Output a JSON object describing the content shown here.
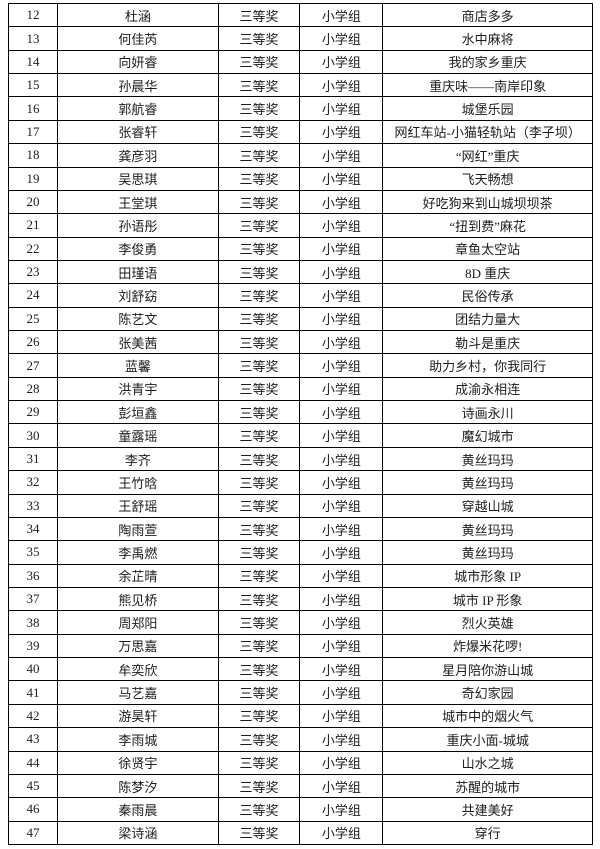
{
  "table": {
    "rows": [
      {
        "no": "12",
        "name": "杜涵",
        "award": "三等奖",
        "group": "小学组",
        "title": "商店多多"
      },
      {
        "no": "13",
        "name": "何佳芮",
        "award": "三等奖",
        "group": "小学组",
        "title": "水中麻将"
      },
      {
        "no": "14",
        "name": "向妍睿",
        "award": "三等奖",
        "group": "小学组",
        "title": "我的家乡重庆"
      },
      {
        "no": "15",
        "name": "孙晨华",
        "award": "三等奖",
        "group": "小学组",
        "title": "重庆味——南岸印象"
      },
      {
        "no": "16",
        "name": "郭航睿",
        "award": "三等奖",
        "group": "小学组",
        "title": "城堡乐园"
      },
      {
        "no": "17",
        "name": "张睿轩",
        "award": "三等奖",
        "group": "小学组",
        "title": "网红车站-小猫轻轨站（李子坝）"
      },
      {
        "no": "18",
        "name": "龚彦羽",
        "award": "三等奖",
        "group": "小学组",
        "title": "“网红”重庆"
      },
      {
        "no": "19",
        "name": "吴思琪",
        "award": "三等奖",
        "group": "小学组",
        "title": "飞天畅想"
      },
      {
        "no": "20",
        "name": "王堂琪",
        "award": "三等奖",
        "group": "小学组",
        "title": "好吃狗来到山城坝坝茶"
      },
      {
        "no": "21",
        "name": "孙语彤",
        "award": "三等奖",
        "group": "小学组",
        "title": "“扭到费”麻花"
      },
      {
        "no": "22",
        "name": "李俊勇",
        "award": "三等奖",
        "group": "小学组",
        "title": "章鱼太空站"
      },
      {
        "no": "23",
        "name": "田瑾语",
        "award": "三等奖",
        "group": "小学组",
        "title": "8D 重庆"
      },
      {
        "no": "24",
        "name": "刘舒窈",
        "award": "三等奖",
        "group": "小学组",
        "title": "民俗传承"
      },
      {
        "no": "25",
        "name": "陈艺文",
        "award": "三等奖",
        "group": "小学组",
        "title": "团结力量大"
      },
      {
        "no": "26",
        "name": "张美茜",
        "award": "三等奖",
        "group": "小学组",
        "title": "勒斗是重庆"
      },
      {
        "no": "27",
        "name": "蓝馨",
        "award": "三等奖",
        "group": "小学组",
        "title": "助力乡村，你我同行"
      },
      {
        "no": "28",
        "name": "洪青宇",
        "award": "三等奖",
        "group": "小学组",
        "title": "成渝永相连"
      },
      {
        "no": "29",
        "name": "彭垣鑫",
        "award": "三等奖",
        "group": "小学组",
        "title": "诗画永川"
      },
      {
        "no": "30",
        "name": "童露瑶",
        "award": "三等奖",
        "group": "小学组",
        "title": "魔幻城市"
      },
      {
        "no": "31",
        "name": "李齐",
        "award": "三等奖",
        "group": "小学组",
        "title": "黄丝玛玛"
      },
      {
        "no": "32",
        "name": "王竹晗",
        "award": "三等奖",
        "group": "小学组",
        "title": "黄丝玛玛"
      },
      {
        "no": "33",
        "name": "王舒瑶",
        "award": "三等奖",
        "group": "小学组",
        "title": "穿越山城"
      },
      {
        "no": "34",
        "name": "陶雨萱",
        "award": "三等奖",
        "group": "小学组",
        "title": "黄丝玛玛"
      },
      {
        "no": "35",
        "name": "李禹燃",
        "award": "三等奖",
        "group": "小学组",
        "title": "黄丝玛玛"
      },
      {
        "no": "36",
        "name": "余芷晴",
        "award": "三等奖",
        "group": "小学组",
        "title": "城市形象 IP"
      },
      {
        "no": "37",
        "name": "熊见桥",
        "award": "三等奖",
        "group": "小学组",
        "title": "城市 IP 形象"
      },
      {
        "no": "38",
        "name": "周郑阳",
        "award": "三等奖",
        "group": "小学组",
        "title": "烈火英雄"
      },
      {
        "no": "39",
        "name": "万思嘉",
        "award": "三等奖",
        "group": "小学组",
        "title": "炸爆米花啰!"
      },
      {
        "no": "40",
        "name": "牟奕欣",
        "award": "三等奖",
        "group": "小学组",
        "title": "星月陪你游山城"
      },
      {
        "no": "41",
        "name": "马艺嘉",
        "award": "三等奖",
        "group": "小学组",
        "title": "奇幻家园"
      },
      {
        "no": "42",
        "name": "游昊轩",
        "award": "三等奖",
        "group": "小学组",
        "title": "城市中的烟火气"
      },
      {
        "no": "43",
        "name": "李雨城",
        "award": "三等奖",
        "group": "小学组",
        "title": "重庆小面-城城"
      },
      {
        "no": "44",
        "name": "徐贤宇",
        "award": "三等奖",
        "group": "小学组",
        "title": "山水之城"
      },
      {
        "no": "45",
        "name": "陈梦汐",
        "award": "三等奖",
        "group": "小学组",
        "title": "苏醒的城市"
      },
      {
        "no": "46",
        "name": "秦雨晨",
        "award": "三等奖",
        "group": "小学组",
        "title": "共建美好"
      },
      {
        "no": "47",
        "name": "梁诗涵",
        "award": "三等奖",
        "group": "小学组",
        "title": "穿行"
      }
    ]
  }
}
